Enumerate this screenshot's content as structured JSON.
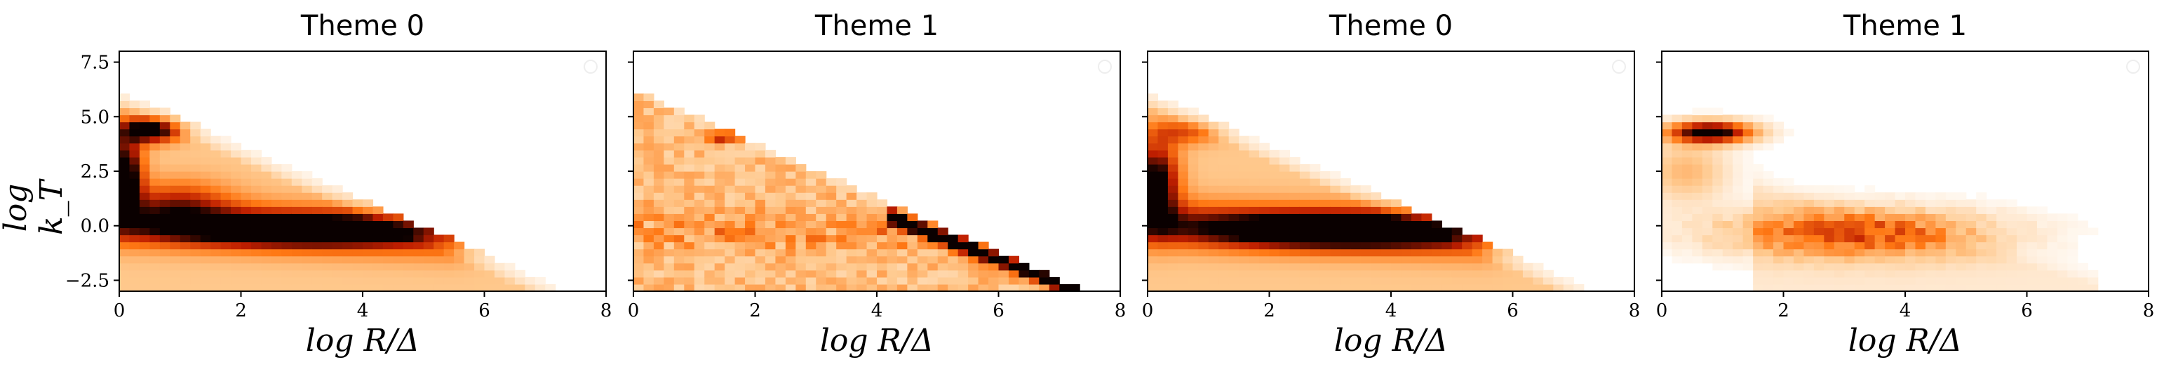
{
  "chart_data": [
    {
      "type": "heatmap",
      "title": "Theme 0",
      "xlabel": "log R/Δ",
      "ylabel": "log k_T",
      "xlim": [
        0,
        8
      ],
      "ylim": [
        -3,
        8
      ],
      "xticks": [
        "0",
        "2",
        "4",
        "6",
        "8"
      ],
      "yticks": [
        "−2.5",
        "0.0",
        "2.5",
        "5.0",
        "7.5"
      ],
      "colormap": "gist_heat_r",
      "density": "broad diagonal band from log kT≈5.8 at log R/Δ=0 down to ≈-2.8 at 7; dense core along log kT≈0 from 1 to 5, dense ridge near 4.5 at 0-1"
    },
    {
      "type": "heatmap",
      "title": "Theme 1",
      "xlabel": "log R/Δ",
      "ylabel": "",
      "xlim": [
        0,
        8
      ],
      "ylim": [
        -3,
        8
      ],
      "xticks": [
        "0",
        "2",
        "4",
        "6",
        "8"
      ],
      "yticks": [],
      "colormap": "gist_heat_r",
      "density": "sparse, noisy fill below diagonal edge from 6 at 0 to -3 at 7.5; dense narrow ridge from (4.5,0) to (7,-2.8)"
    },
    {
      "type": "heatmap",
      "title": "Theme 0",
      "xlabel": "log R/Δ",
      "ylabel": "",
      "xlim": [
        0,
        8
      ],
      "ylim": [
        -3,
        8
      ],
      "xticks": [
        "0",
        "2",
        "4",
        "6",
        "8"
      ],
      "yticks": [],
      "colormap": "gist_heat_r",
      "density": "same shape as first panel; dense core along log kT≈0 from 1 to 5"
    },
    {
      "type": "heatmap",
      "title": "Theme 1",
      "xlabel": "log R/Δ",
      "ylabel": "",
      "xlim": [
        0,
        8
      ],
      "ylim": [
        -3,
        8
      ],
      "xticks": [
        "0",
        "2",
        "4",
        "6",
        "8"
      ],
      "yticks": [],
      "colormap": "gist_heat_r",
      "density": "dense blob at log R/Δ 0.3-1.5, log kT≈4.3; moderate band around log kT≈0 from 1.5 to 5"
    }
  ],
  "colors": {
    "low": "#ffffff",
    "mid": "#ff8c1a",
    "high": "#000000"
  }
}
